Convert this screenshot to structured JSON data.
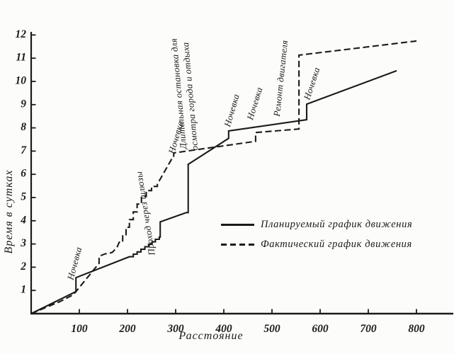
{
  "colors": {
    "ink": "#1b1b1b",
    "paper": "#fcfcfa"
  },
  "chart_data": {
    "type": "line",
    "title": "",
    "xlabel": "Расстояние",
    "ylabel": "Время в сутках",
    "xlim": [
      0,
      875
    ],
    "ylim": [
      0,
      12.2
    ],
    "grid": false,
    "legend_position": "inside-middle-right",
    "x_ticks": [
      100,
      200,
      300,
      400,
      500,
      600,
      700,
      800
    ],
    "y_ticks": [
      1,
      2,
      3,
      4,
      5,
      6,
      7,
      8,
      9,
      10,
      11,
      12
    ],
    "series": [
      {
        "name": "Планируемый график движения",
        "style": "solid",
        "points": [
          [
            0,
            0
          ],
          [
            93,
            0.95
          ],
          [
            93,
            1.55
          ],
          [
            204,
            2.45
          ],
          [
            212,
            2.45
          ],
          [
            212,
            2.56
          ],
          [
            220,
            2.56
          ],
          [
            220,
            2.66
          ],
          [
            228,
            2.66
          ],
          [
            228,
            2.77
          ],
          [
            236,
            2.77
          ],
          [
            236,
            2.88
          ],
          [
            244,
            2.88
          ],
          [
            244,
            2.99
          ],
          [
            251,
            2.99
          ],
          [
            251,
            3.09
          ],
          [
            258,
            3.09
          ],
          [
            258,
            3.2
          ],
          [
            266,
            3.2
          ],
          [
            266,
            3.3
          ],
          [
            268,
            3.3
          ],
          [
            268,
            3.95
          ],
          [
            322,
            4.35
          ],
          [
            326,
            4.35
          ],
          [
            326,
            6.43
          ],
          [
            410,
            7.55
          ],
          [
            410,
            7.87
          ],
          [
            572,
            8.35
          ],
          [
            572,
            9.02
          ],
          [
            759,
            10.46
          ]
        ]
      },
      {
        "name": "Фактический график движения",
        "style": "dashed",
        "points": [
          [
            0,
            0
          ],
          [
            60,
            0.52
          ],
          [
            88,
            0.82
          ],
          [
            141,
            2.17
          ],
          [
            141,
            2.47
          ],
          [
            153,
            2.57
          ],
          [
            168,
            2.63
          ],
          [
            178,
            2.84
          ],
          [
            183,
            3.08
          ],
          [
            190,
            3.08
          ],
          [
            190,
            3.4
          ],
          [
            197,
            3.4
          ],
          [
            197,
            3.72
          ],
          [
            204,
            3.72
          ],
          [
            204,
            4.05
          ],
          [
            212,
            4.05
          ],
          [
            212,
            4.38
          ],
          [
            220,
            4.38
          ],
          [
            220,
            4.72
          ],
          [
            229,
            4.72
          ],
          [
            229,
            5.05
          ],
          [
            239,
            5.05
          ],
          [
            239,
            5.3
          ],
          [
            250,
            5.3
          ],
          [
            250,
            5.48
          ],
          [
            262,
            5.48
          ],
          [
            262,
            5.58
          ],
          [
            293,
            6.7
          ],
          [
            296,
            6.73
          ],
          [
            296,
            6.92
          ],
          [
            466,
            7.42
          ],
          [
            466,
            7.8
          ],
          [
            556,
            7.95
          ],
          [
            556,
            11.13
          ],
          [
            800,
            11.74
          ]
        ]
      }
    ],
    "annotations": [
      {
        "text": "Ночевка",
        "x": 87,
        "y": 1.43,
        "angle": -75
      },
      {
        "text": "Проход через шлюзы",
        "x": 257,
        "y": 2.53,
        "angle": -99
      },
      {
        "text": "Ночевка",
        "x": 297,
        "y": 6.86,
        "angle": -74
      },
      {
        "text": "Длительная остановка для",
        "x": 322,
        "y": 7.1,
        "angle": -95
      },
      {
        "text": "осмотра города и отдыха",
        "x": 346,
        "y": 7.04,
        "angle": -95
      },
      {
        "text": "Ночевка",
        "x": 413,
        "y": 8.02,
        "angle": -74
      },
      {
        "text": "Ночевка",
        "x": 460,
        "y": 8.32,
        "angle": -73
      },
      {
        "text": "Ремонт двигателя",
        "x": 516,
        "y": 8.48,
        "angle": -84
      },
      {
        "text": "Ночевка",
        "x": 578,
        "y": 9.18,
        "angle": -72
      }
    ]
  }
}
